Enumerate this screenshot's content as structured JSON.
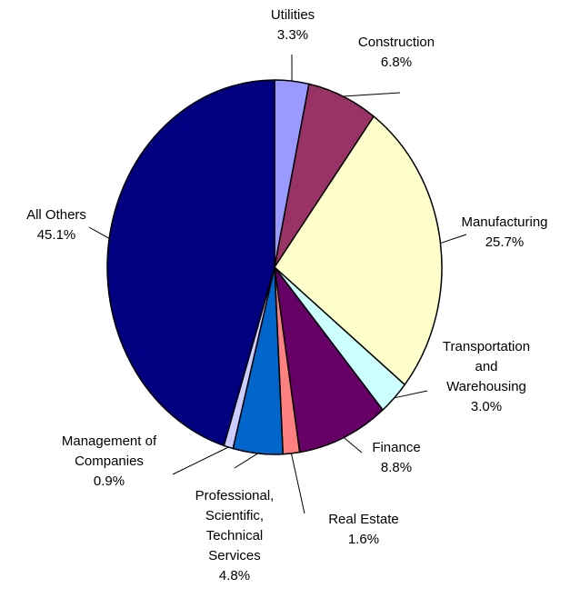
{
  "chart_data": {
    "type": "pie",
    "categories": [
      "Utilities",
      "Construction",
      "Manufacturing",
      "Transportation and Warehousing",
      "Finance",
      "Real Estate",
      "Professional, Scientific, Technical Services",
      "Management of Companies",
      "All Others"
    ],
    "values": [
      3.3,
      6.8,
      25.7,
      3.0,
      8.8,
      1.6,
      4.8,
      0.9,
      45.1
    ],
    "value_labels": [
      "3.3%",
      "6.8%",
      "25.7%",
      "3.0%",
      "8.8%",
      "1.6%",
      "4.8%",
      "0.9%",
      "45.1%"
    ],
    "colors": [
      "#9999ff",
      "#993366",
      "#ffffcc",
      "#ccffff",
      "#660066",
      "#ff8080",
      "#0066cc",
      "#ccccff",
      "#000080"
    ]
  }
}
